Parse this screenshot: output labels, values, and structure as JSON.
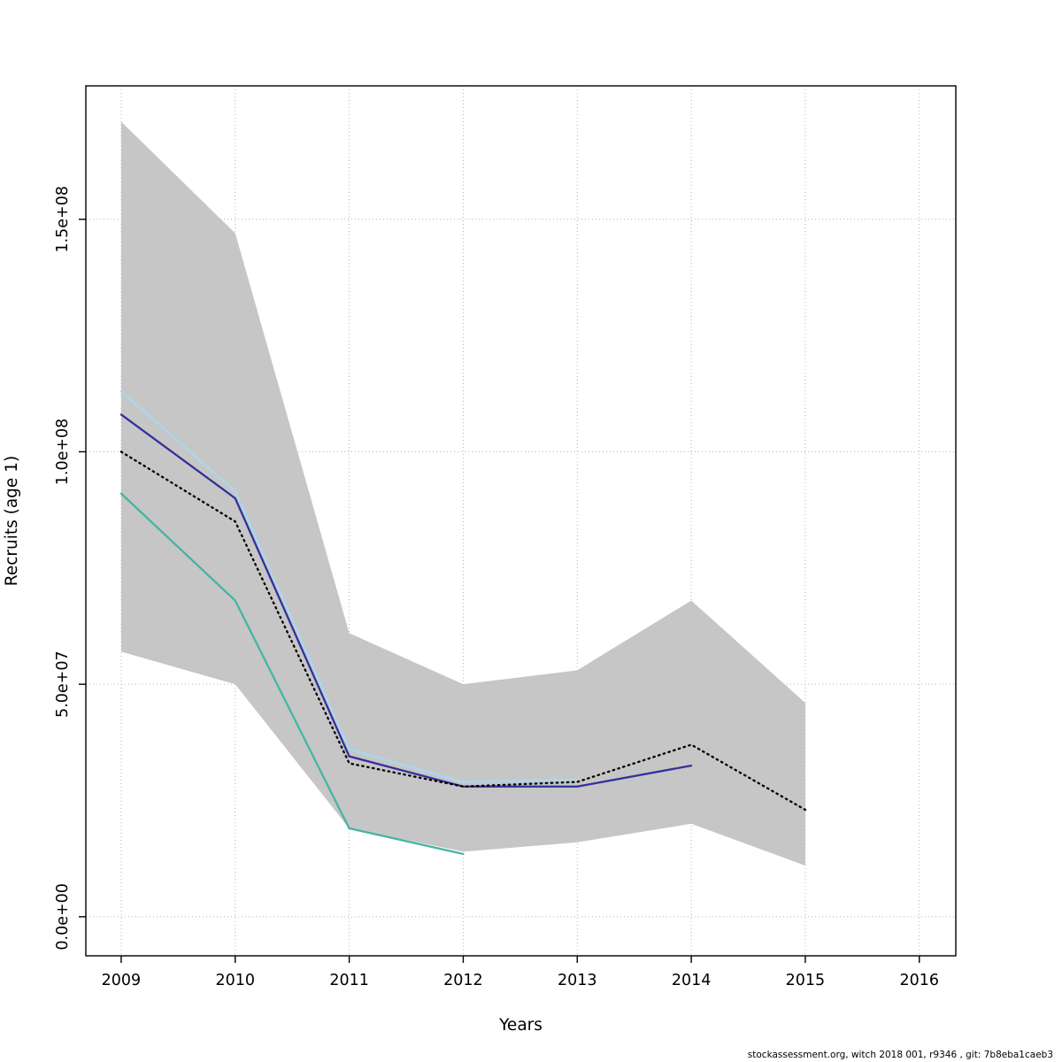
{
  "footer": {
    "text": "stockassessment.org, witch 2018 001, r9346 , git: 7b8eba1caeb3"
  },
  "chart_data": {
    "type": "line",
    "title": "",
    "xlabel": "Years",
    "ylabel": "Recruits (age 1)",
    "xlim": [
      2008.69,
      2016.32
    ],
    "ylim": [
      -8400000,
      178700000
    ],
    "x_ticks": [
      2009,
      2010,
      2011,
      2012,
      2013,
      2014,
      2015,
      2016
    ],
    "x_tick_labels": [
      "2009",
      "2010",
      "2011",
      "2012",
      "2013",
      "2014",
      "2015",
      "2016"
    ],
    "y_ticks": [
      0,
      50000000,
      100000000,
      150000000
    ],
    "y_tick_labels": [
      "0.0e+00",
      "5.0e+07",
      "1.0e+08",
      "1.5e+08"
    ],
    "grid": true,
    "grid_color": "#b3b3b3",
    "legend_position": "none",
    "band": {
      "name": "confidence-band",
      "color": "#c6c6c6",
      "x": [
        2009,
        2010,
        2011,
        2012,
        2013,
        2014,
        2015
      ],
      "upper": [
        171000000,
        147000000,
        61000000,
        50000000,
        53000000,
        68000000,
        46000000
      ],
      "lower": [
        57000000,
        50000000,
        19000000,
        14000000,
        16000000,
        20000000,
        11000000
      ]
    },
    "series": [
      {
        "name": "light-blue-line",
        "style": "solid",
        "color": "#a9d7ee",
        "x": [
          2009,
          2010,
          2011,
          2012,
          2013
        ],
        "values": [
          113000000,
          91500000,
          36000000,
          29000000,
          29500000
        ]
      },
      {
        "name": "teal-line",
        "style": "solid",
        "color": "#45b5a2",
        "x": [
          2009,
          2010,
          2011,
          2012
        ],
        "values": [
          91000000,
          68000000,
          19000000,
          13500000
        ]
      },
      {
        "name": "dark-blue-line",
        "style": "solid",
        "color": "#34309b",
        "x": [
          2009,
          2010,
          2011,
          2012,
          2013,
          2014
        ],
        "values": [
          108000000,
          90000000,
          34500000,
          28000000,
          28000000,
          32500000
        ]
      },
      {
        "name": "black-dotted-line",
        "style": "dotted",
        "color": "#000000",
        "x": [
          2009,
          2010,
          2011,
          2012,
          2013,
          2014,
          2015
        ],
        "values": [
          100000000,
          85000000,
          33000000,
          28000000,
          29000000,
          37000000,
          23000000
        ]
      }
    ]
  }
}
